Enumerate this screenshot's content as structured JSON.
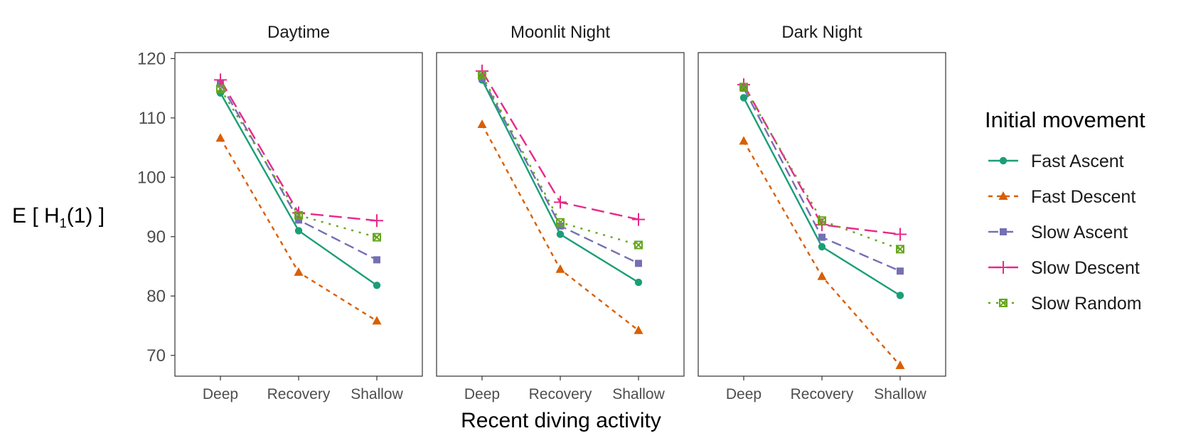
{
  "chart_data": {
    "type": "line",
    "xlabel": "Recent diving activity",
    "ylabel": {
      "base": "E [ H",
      "sub": "1",
      "tail": "(1) ]"
    },
    "ylim": [
      66.5,
      121
    ],
    "yticks": [
      70,
      80,
      90,
      100,
      110,
      120
    ],
    "categories": [
      "Deep",
      "Recovery",
      "Shallow"
    ],
    "legend": {
      "title": "Initial movement",
      "position": "right"
    },
    "grid": false,
    "series_styles": [
      {
        "name": "Fast Ascent",
        "color": "#1b9e77",
        "dash": "",
        "marker": "circle"
      },
      {
        "name": "Fast Descent",
        "color": "#d95f02",
        "dash": "6 6",
        "marker": "triangle"
      },
      {
        "name": "Slow Ascent",
        "color": "#7570b3",
        "dash": "14 7",
        "marker": "square"
      },
      {
        "name": "Slow Descent",
        "color": "#e7298a",
        "dash": "18 8",
        "marker": "plus"
      },
      {
        "name": "Slow Random",
        "color": "#66a61e",
        "dash": "3 8",
        "marker": "boxcross"
      }
    ],
    "panels": [
      {
        "title": "Daytime",
        "series": [
          {
            "name": "Fast Ascent",
            "values": [
              114.2,
              91.0,
              81.8
            ]
          },
          {
            "name": "Fast Descent",
            "values": [
              106.6,
              84.0,
              75.8
            ]
          },
          {
            "name": "Slow Ascent",
            "values": [
              115.8,
              92.8,
              86.1
            ]
          },
          {
            "name": "Slow Descent",
            "values": [
              116.4,
              94.0,
              92.7
            ]
          },
          {
            "name": "Slow Random",
            "values": [
              114.9,
              93.6,
              89.9
            ]
          }
        ]
      },
      {
        "title": "Moonlit Night",
        "series": [
          {
            "name": "Fast Ascent",
            "values": [
              116.4,
              90.4,
              82.3
            ]
          },
          {
            "name": "Fast Descent",
            "values": [
              108.9,
              84.5,
              74.2
            ]
          },
          {
            "name": "Slow Ascent",
            "values": [
              116.8,
              91.8,
              85.5
            ]
          },
          {
            "name": "Slow Descent",
            "values": [
              117.9,
              95.8,
              92.9
            ]
          },
          {
            "name": "Slow Random",
            "values": [
              117.2,
              92.4,
              88.6
            ]
          }
        ]
      },
      {
        "title": "Dark Night",
        "series": [
          {
            "name": "Fast Ascent",
            "values": [
              113.4,
              88.3,
              80.1
            ]
          },
          {
            "name": "Fast Descent",
            "values": [
              106.1,
              83.3,
              68.3
            ]
          },
          {
            "name": "Slow Ascent",
            "values": [
              115.0,
              89.9,
              84.2
            ]
          },
          {
            "name": "Slow Descent",
            "values": [
              115.6,
              92.0,
              90.4
            ]
          },
          {
            "name": "Slow Random",
            "values": [
              115.2,
              92.7,
              87.9
            ]
          }
        ]
      }
    ]
  }
}
